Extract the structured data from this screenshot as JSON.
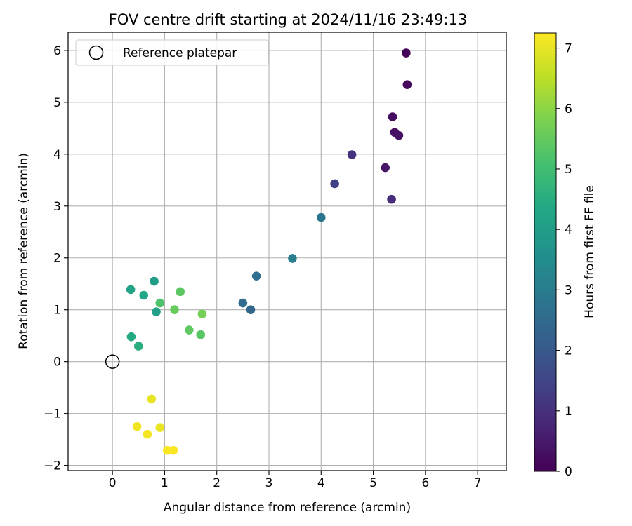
{
  "chart_data": {
    "type": "scatter",
    "title": "FOV centre drift starting at 2024/11/16 23:49:13",
    "xlabel": "Angular distance from reference (arcmin)",
    "ylabel": "Rotation from reference (arcmin)",
    "xlim": [
      -0.85,
      7.55
    ],
    "ylim": [
      -2.1,
      6.35
    ],
    "xticks": [
      0,
      1,
      2,
      3,
      4,
      5,
      6,
      7
    ],
    "yticks": [
      -2,
      -1,
      0,
      1,
      2,
      3,
      4,
      5,
      6
    ],
    "xtick_labels": [
      "0",
      "1",
      "2",
      "3",
      "4",
      "5",
      "6",
      "7"
    ],
    "ytick_labels": [
      "−2",
      "−1",
      "0",
      "1",
      "2",
      "3",
      "4",
      "5",
      "6"
    ],
    "grid": true,
    "legend": {
      "placement": "top-left",
      "entries": [
        "Reference platepar"
      ]
    },
    "reference": {
      "label": "Reference platepar",
      "x": 0,
      "y": 0,
      "marker": "open-circle"
    },
    "colorbar": {
      "label": "Hours from first FF file",
      "range": [
        0,
        7.25
      ],
      "ticks": [
        0,
        1,
        2,
        3,
        4,
        5,
        6,
        7
      ],
      "tick_labels": [
        "0",
        "1",
        "2",
        "3",
        "4",
        "5",
        "6",
        "7"
      ],
      "colormap": "viridis"
    },
    "points": [
      {
        "x": 5.63,
        "y": 5.95,
        "hours": 0.05
      },
      {
        "x": 5.65,
        "y": 5.34,
        "hours": 0.15
      },
      {
        "x": 5.37,
        "y": 4.72,
        "hours": 0.25
      },
      {
        "x": 5.41,
        "y": 4.42,
        "hours": 0.3
      },
      {
        "x": 5.49,
        "y": 4.36,
        "hours": 0.35
      },
      {
        "x": 5.23,
        "y": 3.74,
        "hours": 0.45
      },
      {
        "x": 5.35,
        "y": 3.13,
        "hours": 0.95
      },
      {
        "x": 4.59,
        "y": 3.99,
        "hours": 1.05
      },
      {
        "x": 4.26,
        "y": 3.43,
        "hours": 1.35
      },
      {
        "x": 4.0,
        "y": 2.78,
        "hours": 2.85
      },
      {
        "x": 3.45,
        "y": 1.99,
        "hours": 3.05
      },
      {
        "x": 2.76,
        "y": 1.65,
        "hours": 2.6
      },
      {
        "x": 2.5,
        "y": 1.13,
        "hours": 2.55
      },
      {
        "x": 2.65,
        "y": 1.0,
        "hours": 2.4
      },
      {
        "x": 0.35,
        "y": 1.39,
        "hours": 4.2
      },
      {
        "x": 0.6,
        "y": 1.28,
        "hours": 4.35
      },
      {
        "x": 0.8,
        "y": 1.55,
        "hours": 4.0
      },
      {
        "x": 0.84,
        "y": 0.96,
        "hours": 4.1
      },
      {
        "x": 0.91,
        "y": 1.13,
        "hours": 5.2
      },
      {
        "x": 1.19,
        "y": 1.0,
        "hours": 5.55
      },
      {
        "x": 1.3,
        "y": 1.35,
        "hours": 5.4
      },
      {
        "x": 1.72,
        "y": 0.92,
        "hours": 5.7
      },
      {
        "x": 1.47,
        "y": 0.61,
        "hours": 5.45
      },
      {
        "x": 1.69,
        "y": 0.52,
        "hours": 5.35
      },
      {
        "x": 0.36,
        "y": 0.48,
        "hours": 4.4
      },
      {
        "x": 0.5,
        "y": 0.3,
        "hours": 4.55
      },
      {
        "x": 0.75,
        "y": -0.72,
        "hours": 7.0
      },
      {
        "x": 0.47,
        "y": -1.25,
        "hours": 7.1
      },
      {
        "x": 0.67,
        "y": -1.4,
        "hours": 7.15
      },
      {
        "x": 0.91,
        "y": -1.27,
        "hours": 7.05
      },
      {
        "x": 1.05,
        "y": -1.71,
        "hours": 7.2
      },
      {
        "x": 1.17,
        "y": -1.71,
        "hours": 7.2
      }
    ]
  }
}
